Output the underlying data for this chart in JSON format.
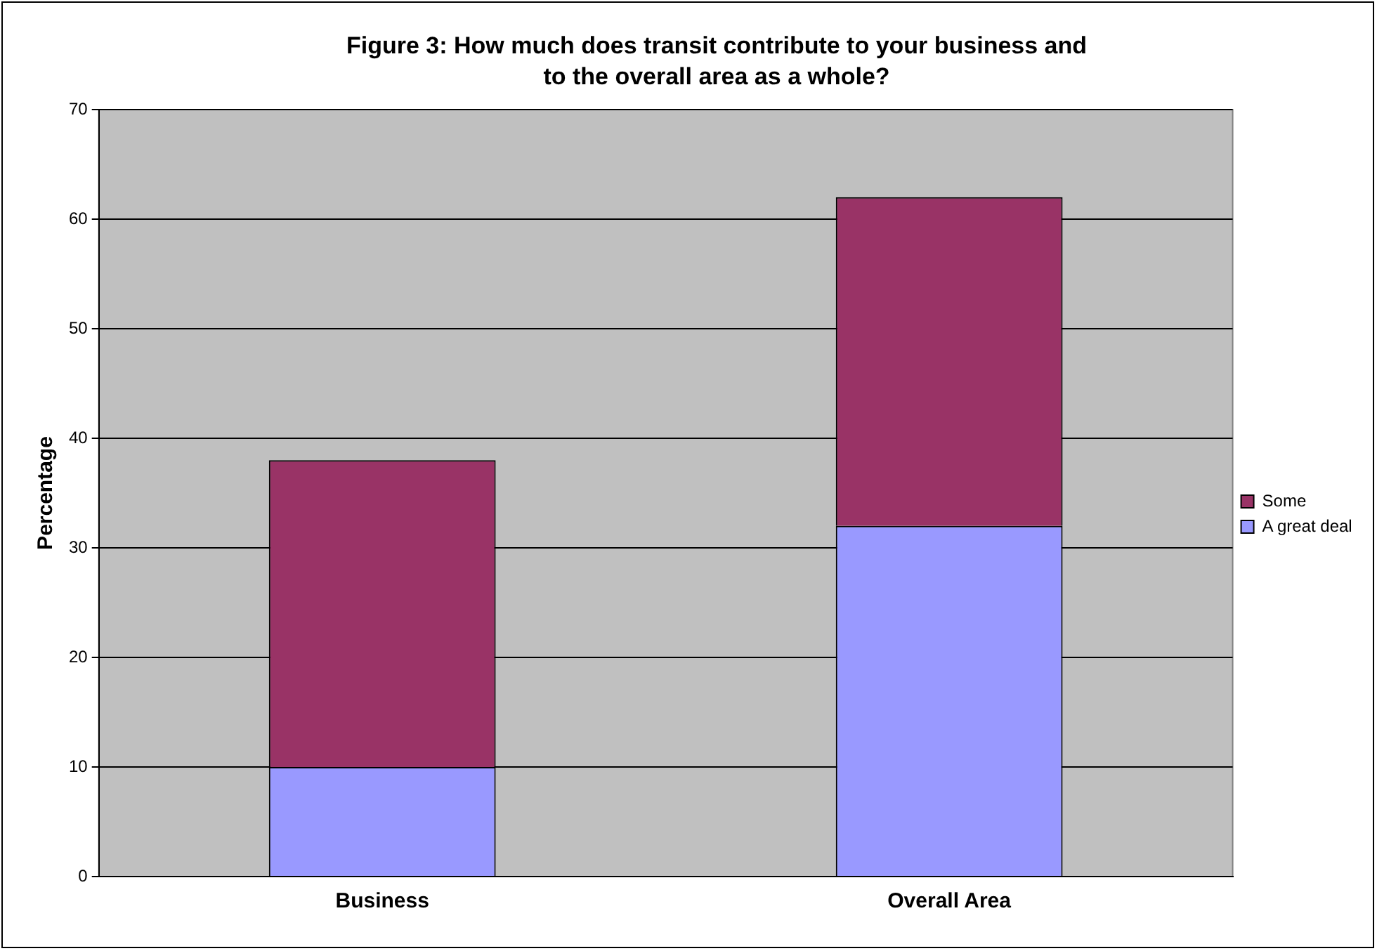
{
  "chart_data": {
    "type": "bar",
    "title": "Figure 3: How much does transit contribute to your business and to the overall area as a whole?",
    "ylabel": "Percentage",
    "categories": [
      "Business",
      "Overall Area"
    ],
    "stacked": true,
    "series": [
      {
        "name": "A great deal",
        "color": "#9999ff",
        "values": [
          10,
          32
        ]
      },
      {
        "name": "Some",
        "color": "#993366",
        "values": [
          28,
          30
        ]
      }
    ],
    "ylim": [
      0,
      70
    ],
    "yticks": [
      0,
      10,
      20,
      30,
      40,
      50,
      60,
      70
    ],
    "grid": "y",
    "legend": "right"
  }
}
